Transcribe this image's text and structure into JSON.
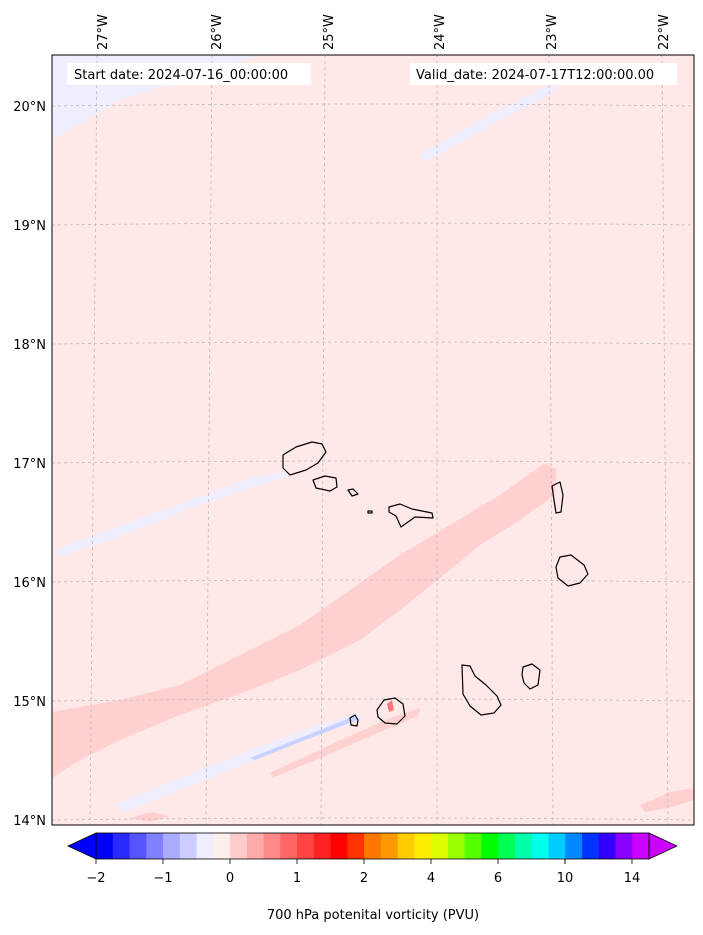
{
  "header": {
    "start_date": "Start date: 2024-07-16_00:00:00",
    "valid_date": "Valid_date: 2024-07-17T12:00:00.00"
  },
  "axes": {
    "lon_labels": [
      "27°W",
      "26°W",
      "25°W",
      "24°W",
      "23°W",
      "22°W"
    ],
    "lat_labels": [
      "20°N",
      "19°N",
      "18°N",
      "17°N",
      "16°N",
      "15°N",
      "14°N"
    ]
  },
  "colorbar": {
    "label": "700 hPa potenital vorticity (PVU)",
    "tick_labels": [
      "−2",
      "−1",
      "0",
      "1",
      "2",
      "4",
      "6",
      "8",
      "10",
      "14"
    ],
    "colors": [
      "#0000ff",
      "#2a2aff",
      "#5555ff",
      "#7f7fff",
      "#aaaaff",
      "#ccccff",
      "#eeeeff",
      "#ffeeee",
      "#ffcccc",
      "#ffaaaa",
      "#ff8888",
      "#ff6666",
      "#ff4444",
      "#ff2222",
      "#ff0000",
      "#ff3300",
      "#ff7700",
      "#ff9900",
      "#ffcc00",
      "#ffee00",
      "#ddff00",
      "#99ff00",
      "#55ff00",
      "#00ff00",
      "#00ff55",
      "#00ffaa",
      "#00ffee",
      "#00ccff",
      "#0088ff",
      "#0033ff",
      "#3300ff",
      "#8800ff",
      "#cc00ff"
    ],
    "under_color": "#0000ff",
    "over_color": "#cc00ff"
  },
  "map_style": {
    "background_color": "#ffe8e8",
    "band_color": "#ffd0d0",
    "negative_color": "#eeeeff",
    "coastline_color": "#000000"
  }
}
